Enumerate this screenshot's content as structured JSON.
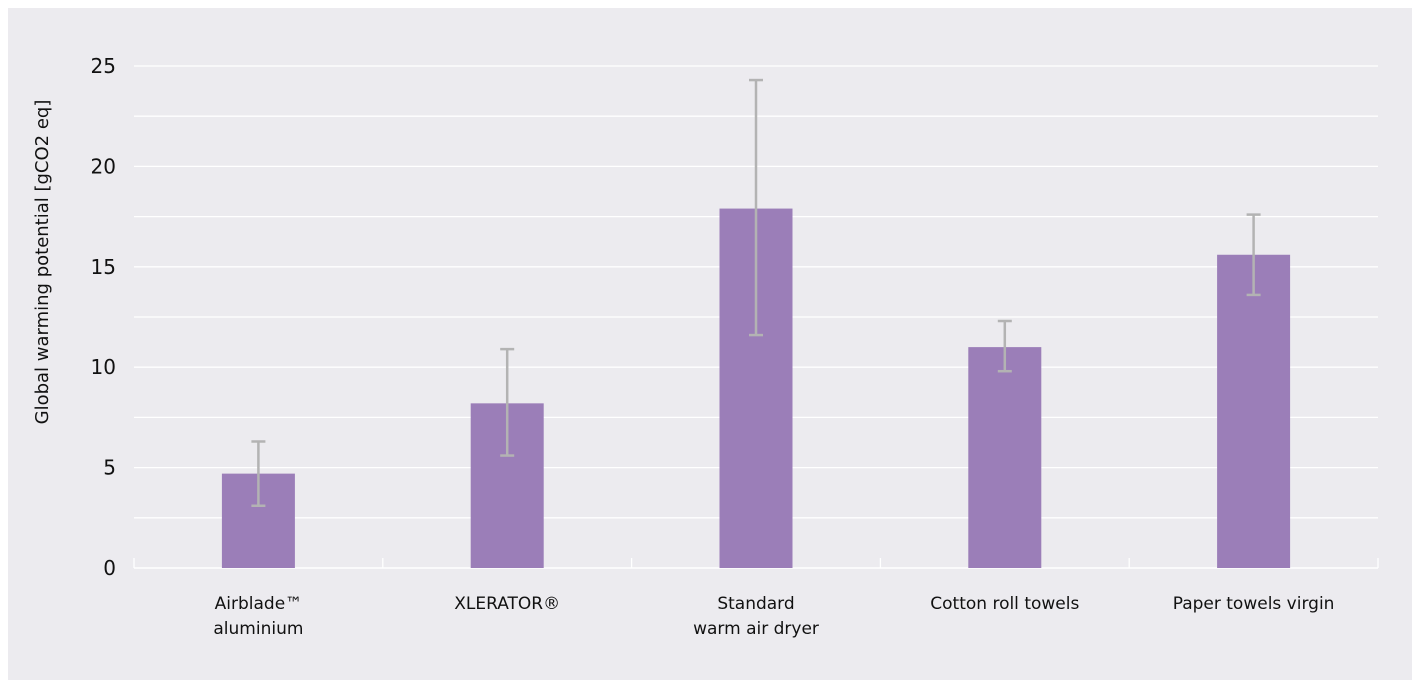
{
  "chart_data": {
    "type": "bar",
    "title": "",
    "ylabel": "Global warming potential [gCO2 eq]",
    "xlabel": "",
    "ylim": [
      0,
      25
    ],
    "yticks": [
      0,
      5,
      10,
      15,
      20,
      25
    ],
    "grid": true,
    "legend": "none",
    "categories": [
      [
        "Airblade™",
        "aluminium"
      ],
      [
        "XLERATOR®"
      ],
      [
        "Standard",
        "warm air dryer"
      ],
      [
        "Cotton roll towels"
      ],
      [
        "Paper towels virgin"
      ]
    ],
    "values": [
      4.7,
      8.2,
      17.9,
      11.0,
      15.6
    ],
    "error_low": [
      3.1,
      5.6,
      11.6,
      9.8,
      13.6
    ],
    "error_high": [
      6.3,
      10.9,
      24.3,
      12.3,
      17.6
    ]
  },
  "colors": {
    "bar": "#9b7eb8",
    "error_bar": "#b3b3b3",
    "gridline": "#ffffff",
    "background": "#ecebef"
  }
}
